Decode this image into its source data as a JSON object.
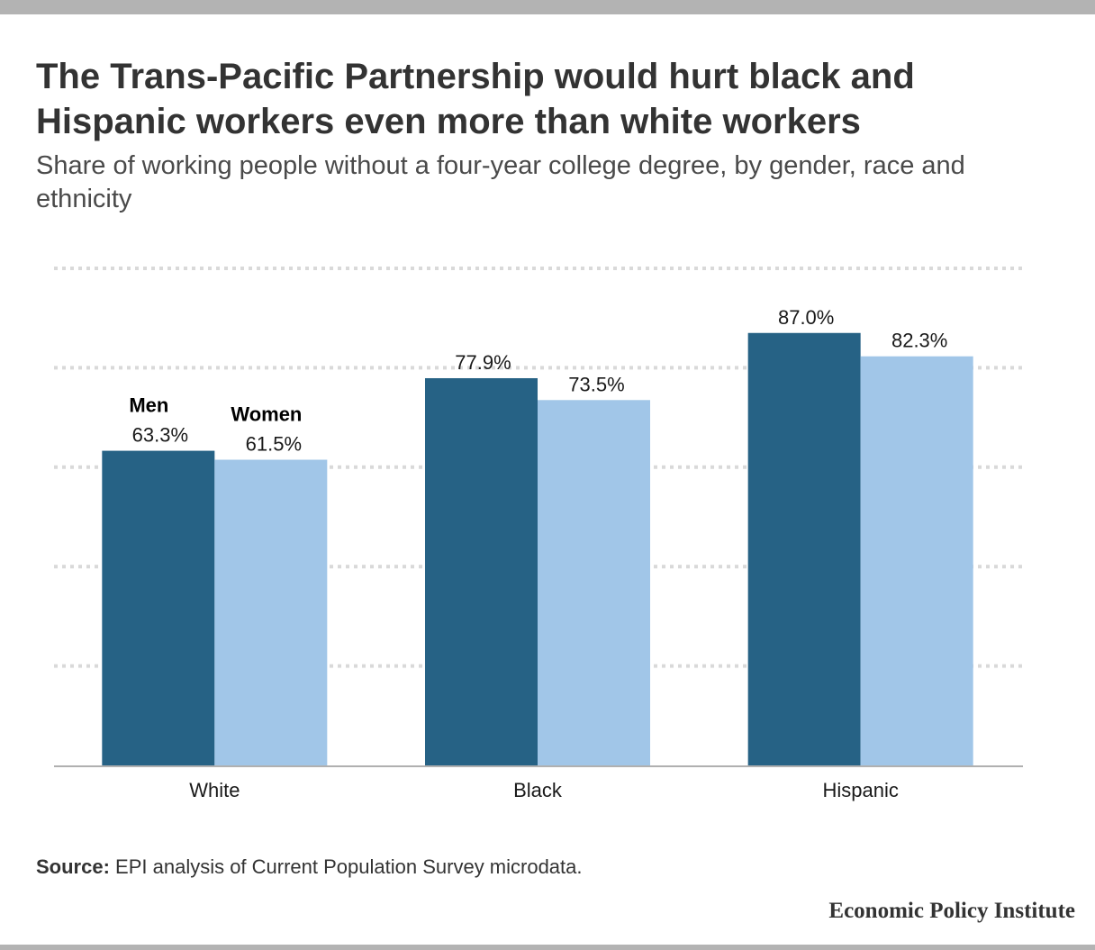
{
  "title": "The Trans-Pacific Partnership would hurt black and Hispanic workers even more than white workers",
  "subtitle": "Share of working people without a four-year college degree, by gender, race and ethnicity",
  "source_label": "Source:",
  "source_text": " EPI analysis of Current Population Survey microdata.",
  "brand": "Economic Policy Institute",
  "chart_data": {
    "type": "bar",
    "categories": [
      "White",
      "Black",
      "Hispanic"
    ],
    "series": [
      {
        "name": "Men",
        "values": [
          63.3,
          77.9,
          87.0
        ],
        "labels": [
          "63.3%",
          "77.9%",
          "87.0%"
        ],
        "color": "#266285"
      },
      {
        "name": "Women",
        "values": [
          61.5,
          73.5,
          82.3
        ],
        "labels": [
          "61.5%",
          "73.5%",
          "82.3%"
        ],
        "color": "#a1c6e8"
      }
    ],
    "ylim": [
      0,
      100
    ],
    "grid": true,
    "gridline_style": "dotted",
    "legend": "direct labels on first group",
    "xlabel": "",
    "ylabel": ""
  }
}
